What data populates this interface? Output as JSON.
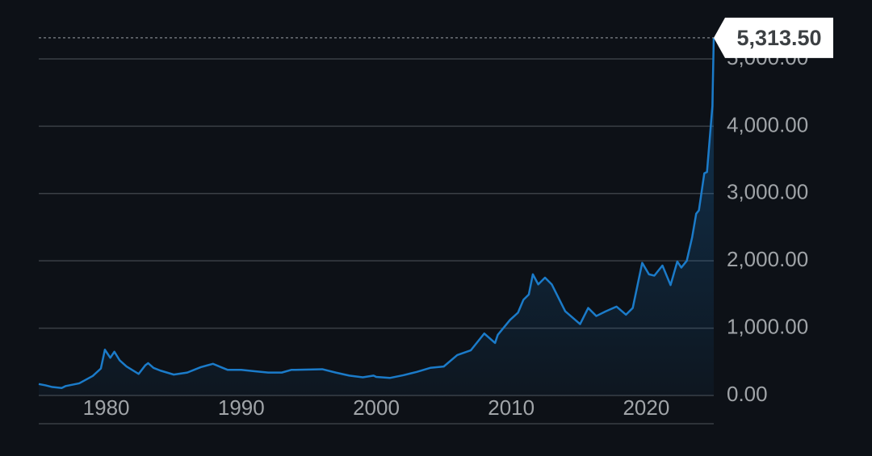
{
  "chart_data": {
    "type": "line",
    "x": [
      1975,
      1975.5,
      1976,
      1976.7,
      1977,
      1978,
      1979,
      1979.6,
      1979.9,
      1980.3,
      1980.6,
      1981,
      1981.5,
      1982.4,
      1982.9,
      1983.1,
      1983.5,
      1984,
      1985,
      1986,
      1987,
      1987.9,
      1988.5,
      1989,
      1990,
      1991,
      1992,
      1993,
      1993.7,
      1994,
      1995,
      1996,
      1997,
      1998,
      1999,
      1999.8,
      2000,
      2001,
      2002,
      2003,
      2004,
      2005,
      2006,
      2007,
      2008,
      2008.8,
      2009,
      2009.9,
      2010.5,
      2010.9,
      2011.3,
      2011.6,
      2012,
      2012.5,
      2013,
      2014,
      2015.1,
      2015.7,
      2016.3,
      2017,
      2017.8,
      2018.5,
      2019,
      2019.7,
      2020.2,
      2020.6,
      2021.2,
      2021.8,
      2022.3,
      2022.6,
      2023,
      2023.4,
      2023.7,
      2023.9,
      2024.3,
      2024.5,
      2024.9,
      2025
    ],
    "values": [
      170,
      150,
      125,
      110,
      140,
      180,
      290,
      400,
      680,
      560,
      650,
      520,
      430,
      320,
      450,
      480,
      410,
      370,
      310,
      340,
      420,
      470,
      420,
      380,
      380,
      360,
      340,
      340,
      380,
      380,
      385,
      390,
      340,
      295,
      270,
      295,
      275,
      260,
      300,
      350,
      410,
      430,
      600,
      670,
      920,
      780,
      900,
      1120,
      1230,
      1420,
      1500,
      1800,
      1650,
      1750,
      1650,
      1250,
      1060,
      1300,
      1180,
      1250,
      1320,
      1200,
      1300,
      1970,
      1800,
      1780,
      1930,
      1640,
      1990,
      1900,
      2000,
      2350,
      2700,
      2750,
      3300,
      3320,
      4300,
      5313.5
    ],
    "value_labels": [
      null,
      null,
      null,
      null,
      null,
      null,
      null,
      null,
      null,
      null,
      null,
      null,
      null,
      null,
      null,
      null,
      null,
      null,
      null,
      null,
      null,
      null,
      null,
      null,
      null,
      null,
      null,
      null,
      null,
      null,
      null,
      null,
      null,
      null,
      null,
      null,
      null,
      null,
      null,
      null,
      null,
      null,
      null,
      null,
      null,
      null,
      null,
      null,
      null,
      null,
      null,
      null,
      null,
      null,
      null,
      null,
      null,
      null,
      null,
      null,
      null,
      null,
      null,
      null,
      null,
      null,
      null,
      null,
      null,
      null,
      null,
      null,
      null,
      null,
      null,
      null,
      null,
      "5,313.50"
    ],
    "color": "#1b7bc9",
    "xlim": [
      1975,
      2025
    ],
    "xticks": [
      1980,
      1990,
      2000,
      2010,
      2020
    ],
    "ylim": [
      -420,
      5320
    ],
    "yticks": [
      {
        "value": 0,
        "label": "0.00"
      },
      {
        "value": 1000,
        "label": "1,000.00"
      },
      {
        "value": 2000,
        "label": "2,000.00"
      },
      {
        "value": 3000,
        "label": "3,000.00"
      },
      {
        "value": 4000,
        "label": "4,000.00"
      },
      {
        "value": 5000,
        "label": "5,000.00"
      }
    ],
    "grid": true
  }
}
